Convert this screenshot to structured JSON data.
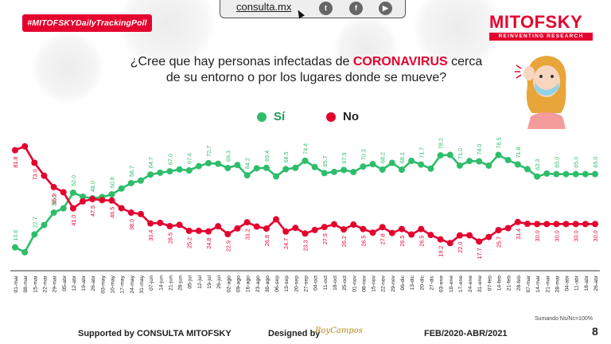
{
  "hashtag": "#MITOFSKYDailyTrackingPoll",
  "topbar": {
    "url": "consulta.mx",
    "twitter_icon": "twitter-icon",
    "facebook_icon": "facebook-icon",
    "youtube_icon": "youtube-icon"
  },
  "logo": {
    "brand": "MITOFSKY",
    "tagline": "REINVENTING RESEARCH"
  },
  "question": {
    "line1_pre": "¿Cree que hay personas infectadas de ",
    "line1_highlight": "CORONAVIRUS",
    "line1_post": " cerca",
    "line2": "de su entorno o por los lugares donde se mueve?"
  },
  "legend": {
    "yes": "Sí",
    "no": "No"
  },
  "colors": {
    "yes": "#2ebd6b",
    "no": "#e4032e",
    "accent": "#e4032e"
  },
  "footer": {
    "supported": "Supported by  CONSULTA  MITOFSKY",
    "designed": "Designed by",
    "signature": "RoyCampos",
    "period": "FEB/2020-ABR/2021",
    "note": "Sumando Ns/Nc=100%",
    "page": "8"
  },
  "chart_data": {
    "type": "line",
    "categories": [
      "01-mar",
      "08-mar",
      "15-mar",
      "22-mar",
      "29-mar",
      "05-abr",
      "12-abr",
      "19-abr",
      "26-abr",
      "03-may",
      "10-may",
      "17-may",
      "24-may",
      "31-may",
      "07-jun",
      "14-jun",
      "21-jun",
      "28-jun",
      "05-jul",
      "12-jul",
      "19-jul",
      "26-jul",
      "02-ago",
      "09-ago",
      "16-ago",
      "23-ago",
      "30-ago",
      "06-sep",
      "13-sep",
      "20-sep",
      "27-sep",
      "04-oct",
      "11-oct",
      "18-oct",
      "25-oct",
      "01-nov",
      "08-nov",
      "15-nov",
      "22-nov",
      "29-nov",
      "06-dic",
      "13-dic",
      "20-dic",
      "27-dic",
      "03-ene",
      "10-ene",
      "17-ene",
      "24-ene",
      "31-ene",
      "07-feb",
      "14-feb",
      "21-feb",
      "28-feb",
      "07-mar",
      "14-mar",
      "21-mar",
      "28-mar",
      "04-abr",
      "11-abr",
      "18-abr",
      "26-abr"
    ],
    "series": [
      {
        "name": "Sí",
        "color": "#2ebd6b",
        "values": [
          13.6,
          10.2,
          22.7,
          29.3,
          38.0,
          41.0,
          52.0,
          49.2,
          48.0,
          48.9,
          50.8,
          54.9,
          58.7,
          60.5,
          64.7,
          66.0,
          67.0,
          68.3,
          67.6,
          70.6,
          72.7,
          72.3,
          69.3,
          71.4,
          64.2,
          69.1,
          69.4,
          63.4,
          68.5,
          69.4,
          74.4,
          70.0,
          65.7,
          66.6,
          67.9,
          66.5,
          70.3,
          72.0,
          68.2,
          72.9,
          68.1,
          74.3,
          71.7,
          68.9,
          78.2,
          78.5,
          71.0,
          74.2,
          74.0,
          71.0,
          78.5,
          74.9,
          71.8,
          68.5,
          63.3,
          65.4,
          65.0,
          65.0,
          65.0,
          65.0,
          65.0
        ]
      },
      {
        "name": "No",
        "color": "#e4032e",
        "values": [
          81.8,
          84.5,
          73.0,
          63.9,
          55.9,
          52.3,
          41.0,
          45.9,
          47.5,
          46.8,
          46.5,
          41.1,
          38.0,
          37.0,
          30.4,
          30.8,
          28.5,
          29.4,
          25.2,
          25.2,
          24.8,
          28.4,
          22.9,
          26.9,
          31.2,
          28.2,
          26.8,
          33.3,
          24.7,
          27.3,
          23.3,
          25.8,
          27.9,
          29.8,
          26.2,
          29.6,
          26.5,
          23.9,
          27.8,
          23.7,
          26.5,
          22.6,
          26.5,
          22.3,
          19.2,
          16.6,
          22.0,
          22.1,
          17.7,
          20.9,
          25.7,
          27.1,
          31.4,
          30.1,
          30.0,
          30.0,
          30.0,
          30.0,
          30.0,
          30.0,
          30.0
        ]
      }
    ],
    "ylim": [
      0,
      95
    ],
    "grid": false,
    "legend_position": "top"
  }
}
